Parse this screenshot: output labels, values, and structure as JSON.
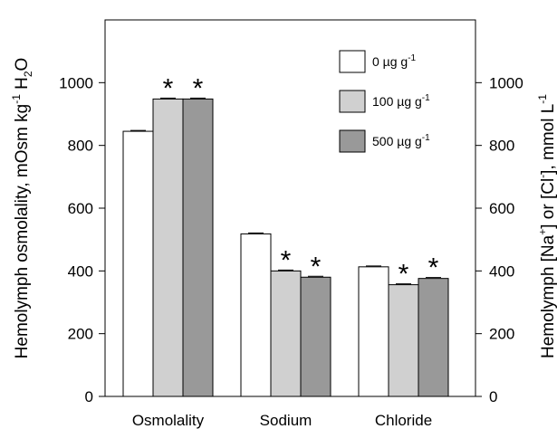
{
  "chart_data": {
    "type": "bar",
    "categories": [
      "Osmolality",
      "Sodium",
      "Chloride"
    ],
    "series": [
      {
        "name": "0 µg g",
        "superscript": "-1",
        "color": "#ffffff",
        "values": [
          845,
          518,
          413
        ]
      },
      {
        "name": "100 µg g",
        "superscript": "-1",
        "color": "#d0d0d0",
        "values": [
          948,
          400,
          356
        ]
      },
      {
        "name": "500 µg g",
        "superscript": "-1",
        "color": "#999999",
        "values": [
          948,
          380,
          376
        ]
      }
    ],
    "significance_marker": "*",
    "significant": [
      [
        false,
        true,
        true
      ],
      [
        false,
        true,
        true
      ],
      [
        false,
        true,
        true
      ]
    ],
    "ylim": [
      0,
      1200
    ],
    "yticks": [
      0,
      200,
      400,
      600,
      800,
      1000
    ],
    "ylabel_left": "Hemolymph osmolality, mOsm kg",
    "ylabel_left_sup": "-1",
    "ylabel_left_tail": " H",
    "ylabel_left_sub": "2",
    "ylabel_left_end": "O",
    "ylabel_right": "Hemolymph [Na",
    "ylabel_right_sup1": "+",
    "ylabel_right_mid": "] or [Cl",
    "ylabel_right_sup2": "-",
    "ylabel_right_tail": "], mmol L",
    "ylabel_right_sup3": "-1",
    "legend_position": "top-right"
  }
}
